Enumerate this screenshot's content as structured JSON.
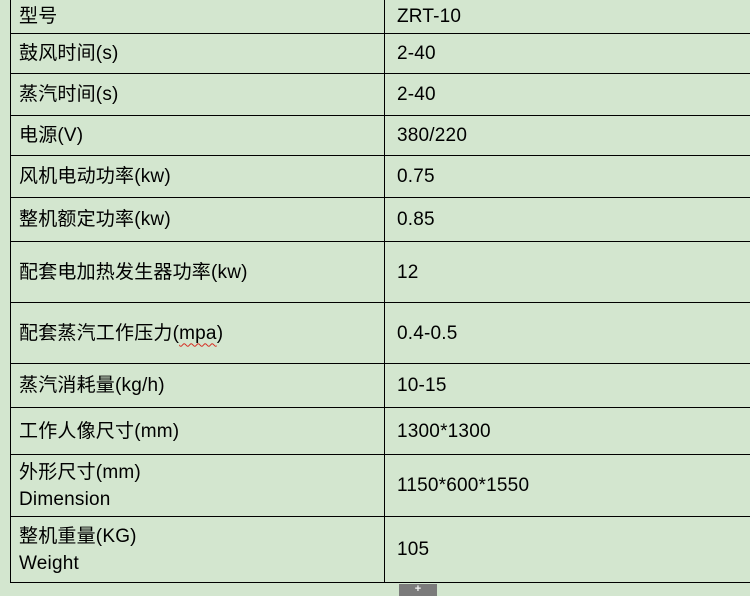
{
  "page": {
    "background_color": "#d3e6cf",
    "grid_color": "#000000",
    "squiggle_color": "#d62a1f"
  },
  "table": {
    "rows": [
      {
        "label": "型号",
        "value": "ZRT-10"
      },
      {
        "label": "鼓风时间(s)",
        "value": "2-40"
      },
      {
        "label": "蒸汽时间(s)",
        "value": "2-40"
      },
      {
        "label": "电源(V)",
        "value": "380/220"
      },
      {
        "label": "风机电动功率(kw)",
        "value": "0.75"
      },
      {
        "label": "整机额定功率(kw)",
        "value": "0.85"
      },
      {
        "label": "配套电加热发生器功率(kw)",
        "value": "12"
      },
      {
        "label": "配套蒸汽工作压力(mpa)",
        "squiggle": "mpa",
        "value": "0.4-0.5"
      },
      {
        "label": "蒸汽消耗量(kg/h)",
        "value": "10-15"
      },
      {
        "label": "工作人像尺寸(mm)",
        "value": "1300*1300"
      },
      {
        "label": "外形尺寸(mm)",
        "label_line2": "Dimension",
        "value": "1150*600*1550"
      },
      {
        "label": "整机重量(KG)",
        "label_line2": "Weight",
        "value": "105"
      }
    ]
  },
  "widgets": {
    "insert_handle_glyph": "+"
  }
}
